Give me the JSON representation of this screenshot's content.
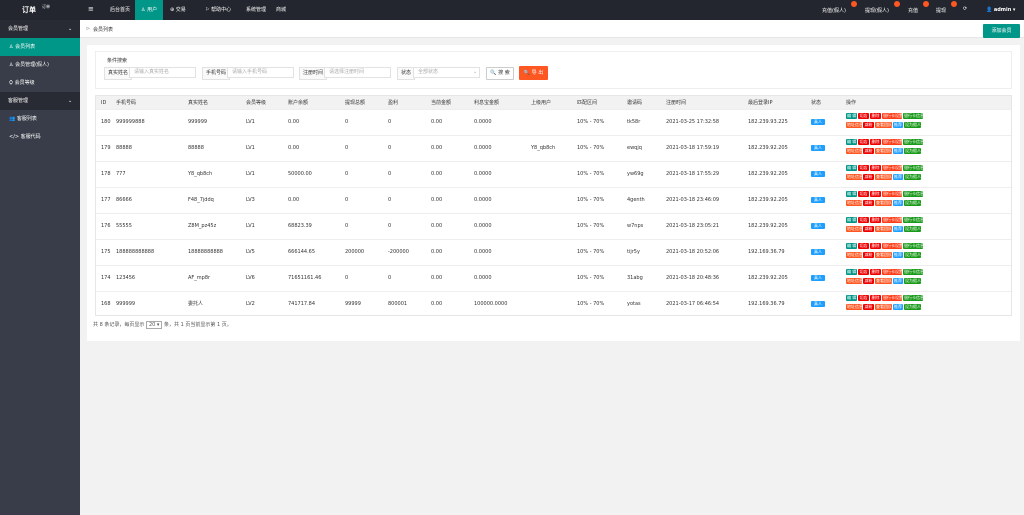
{
  "brand": {
    "title": "订单",
    "sub": "订单"
  },
  "nav": [
    "后台首页",
    "用户",
    "交易",
    "帮助中心",
    "系统管理",
    "商城"
  ],
  "top_right": [
    "充值(假人)",
    "提现(假人)",
    "充值",
    "提现"
  ],
  "user": "admin",
  "sidebar": [
    {
      "title": "会员管理",
      "items": [
        "会员列表",
        "会员管理(假人)",
        "会员等级"
      ]
    },
    {
      "title": "客服管理",
      "items": [
        "客服列表",
        "客服代码"
      ]
    }
  ],
  "breadcrumb": "会员列表",
  "add_button": "添加会员",
  "search": {
    "title": "条件搜索",
    "fields": [
      {
        "label": "真实姓名",
        "placeholder": "请输入真实姓名"
      },
      {
        "label": "手机号码",
        "placeholder": "请输入手机号码"
      },
      {
        "label": "注册时间",
        "placeholder": "请选择注册时间"
      }
    ],
    "status_label": "状态",
    "status_placeholder": "全部状态",
    "search_button": "搜 索",
    "export_button": "导 出"
  },
  "table": {
    "columns": [
      "ID",
      "手机号码",
      "真实姓名",
      "会员等级",
      "账户余额",
      "提现总额",
      "盈利",
      "当前金额",
      "利息宝金额",
      "上级用户",
      "匹配区间",
      "邀请码",
      "注册时间",
      "最后登录IP",
      "状态",
      "操作"
    ],
    "rows": [
      [
        "180",
        "999999888",
        "999999",
        "LV1",
        "0.00",
        "0",
        "0",
        "0.00",
        "0.0000",
        null,
        "10% - 70%",
        "tk58r",
        "2021-03-25 17:32:58",
        "182.239.93.225",
        "真人"
      ],
      [
        "179",
        "88888",
        "88888",
        "LV1",
        "0.00",
        "0",
        "0",
        "0.00",
        "0.0000",
        "Y8_qb8ch",
        "10% - 70%",
        "ewqjq",
        "2021-03-18 17:59:19",
        "182.239.92.205",
        "真人"
      ],
      [
        "178",
        "777",
        "Y8_qb8ch",
        "LV1",
        "50000.00",
        "0",
        "0",
        "0.00",
        "0.0000",
        null,
        "10% - 70%",
        "yw69g",
        "2021-03-18 17:55:29",
        "182.239.92.205",
        "真人"
      ],
      [
        "177",
        "86666",
        "F48_7jddq",
        "LV3",
        "0.00",
        "0",
        "0",
        "0.00",
        "0.0000",
        null,
        "10% - 70%",
        "4genth",
        "2021-03-18 23:46:09",
        "182.239.92.205",
        "真人"
      ],
      [
        "176",
        "55555",
        "Z8M_pz45z",
        "LV1",
        "68823.39",
        "0",
        "0",
        "0.00",
        "0.0000",
        null,
        "10% - 70%",
        "w7nps",
        "2021-03-18 23:05:21",
        "182.239.92.205",
        "真人"
      ],
      [
        "175",
        "188888888888",
        "18888888888",
        "LV5",
        "666144.65",
        "200000",
        "-200000",
        "0.00",
        "0.0000",
        null,
        "10% - 70%",
        "tijr5y",
        "2021-03-18 20:52:06",
        "192.169.36.79",
        "真人"
      ],
      [
        "174",
        "123456",
        "AF_mp8r",
        "LV6",
        "71651161.46",
        "0",
        "0",
        "0.00",
        "0.0000",
        null,
        "10% - 70%",
        "31abg",
        "2021-03-18 20:48:36",
        "182.239.92.205",
        "真人"
      ],
      [
        "168",
        "999999",
        "委托人",
        "LV2",
        "741717.84",
        "99999",
        "800001",
        "0.00",
        "100000.0000",
        null,
        "10% - 70%",
        "yotas",
        "2021-03-17 06:46:54",
        "192.169.36.79",
        "真人"
      ]
    ],
    "actions": [
      "编 辑",
      "切店",
      "删除",
      "银行卡设置",
      "银行卡信息",
      "地址信息",
      "减粉",
      "查看团队",
      "推荐",
      "设为假人"
    ]
  },
  "pager": {
    "prefix": "共 8 条记录，每页显示",
    "page_size": "20",
    "suffix": "条，共 1 页当前显示第 1 页。"
  }
}
